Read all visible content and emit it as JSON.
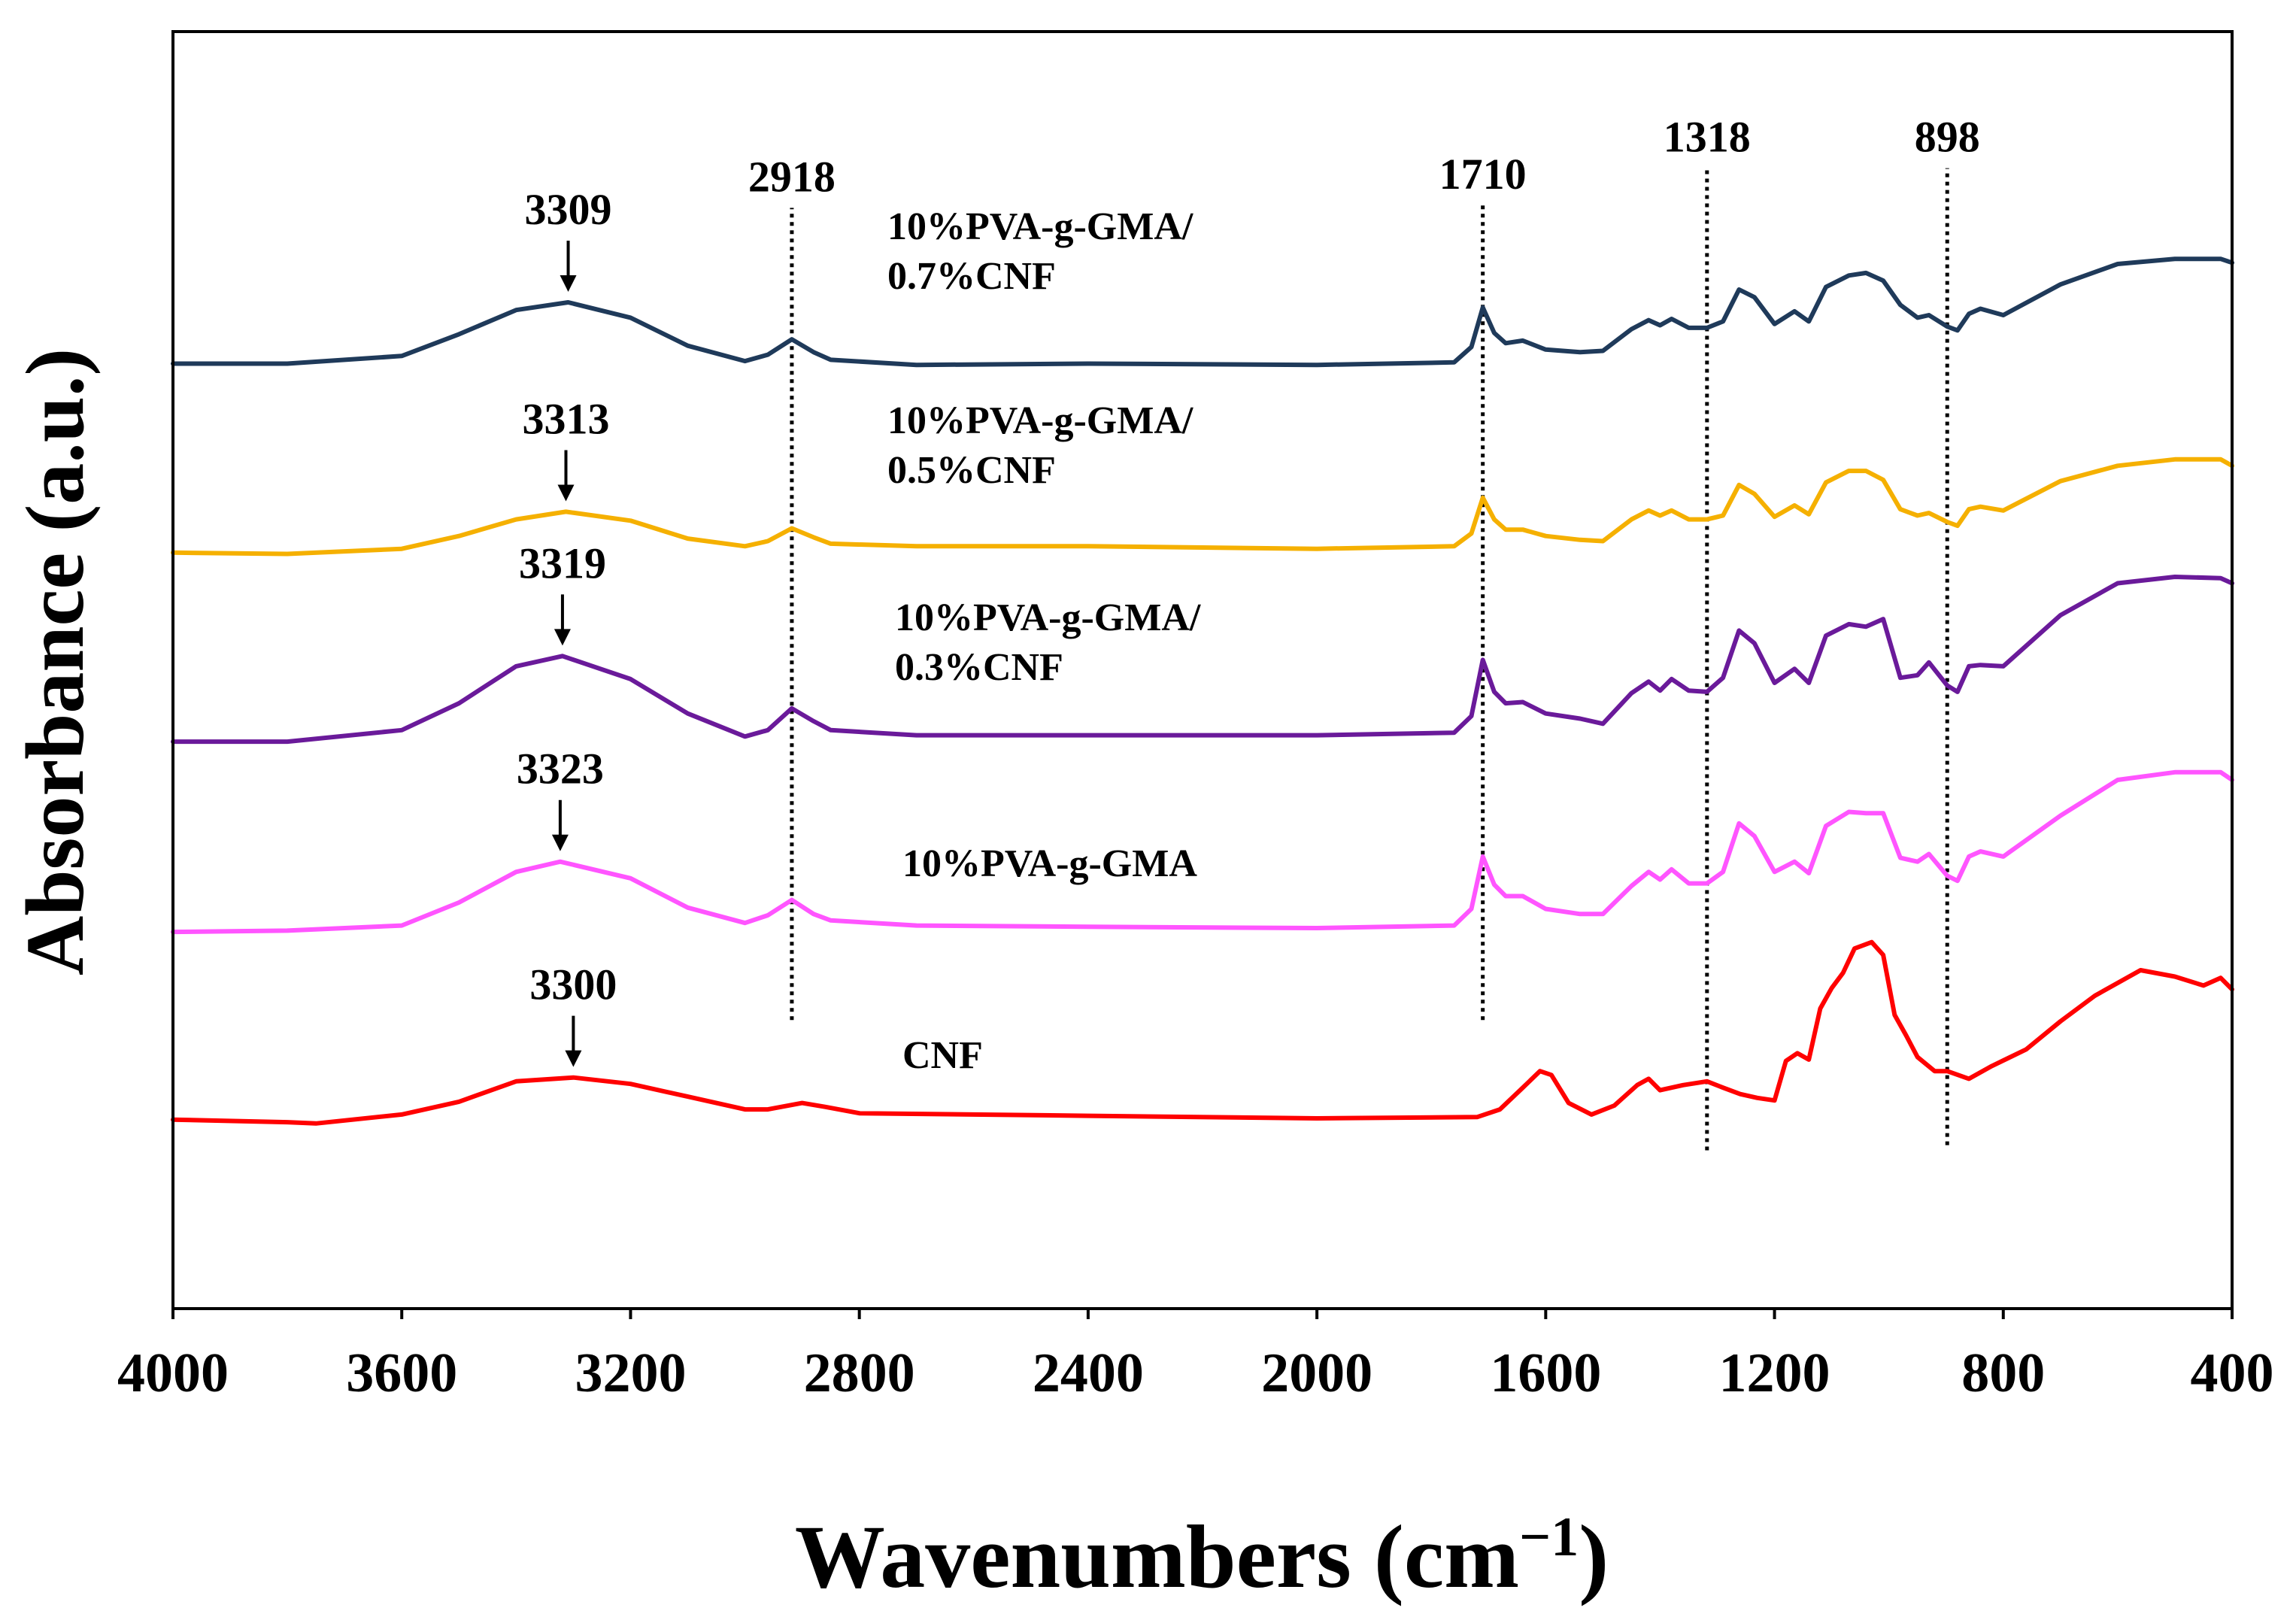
{
  "chart_data": {
    "type": "line",
    "title": "",
    "xlabel": "Wavenumbers (cm",
    "xlabel_sup": "−1",
    "xlabel_close": ")",
    "ylabel": "Absorbance (a.u.)",
    "xlim": [
      4000,
      400
    ],
    "ylim": [
      0,
      100
    ],
    "x_inverted": true,
    "grid": false,
    "y_ticks_shown": false,
    "x_ticks": [
      "4000",
      "3600",
      "3200",
      "2800",
      "2400",
      "2000",
      "1600",
      "1200",
      "800",
      "400"
    ],
    "colors": {
      "pva_07cnf": "#1f3a5a",
      "pva_05cnf": "#f5b000",
      "pva_03cnf": "#6a1a9a",
      "pva": "#ff55ff",
      "cnf": "#ff0000"
    },
    "series": [
      {
        "name": "10%PVA-g-GMA/0.7%CNF",
        "label_lines": [
          "10%PVA-g-GMA/",
          "0.7%CNF"
        ],
        "color": "#1f3a5a",
        "points": [
          [
            4000,
            74.0
          ],
          [
            3800,
            74.0
          ],
          [
            3600,
            74.6
          ],
          [
            3500,
            76.3
          ],
          [
            3400,
            78.2
          ],
          [
            3309,
            78.8
          ],
          [
            3200,
            77.6
          ],
          [
            3100,
            75.4
          ],
          [
            3000,
            74.2
          ],
          [
            2960,
            74.7
          ],
          [
            2918,
            75.9
          ],
          [
            2880,
            74.9
          ],
          [
            2850,
            74.3
          ],
          [
            2700,
            73.9
          ],
          [
            2400,
            74.0
          ],
          [
            2000,
            73.9
          ],
          [
            1760,
            74.1
          ],
          [
            1730,
            75.3
          ],
          [
            1710,
            78.4
          ],
          [
            1690,
            76.4
          ],
          [
            1670,
            75.6
          ],
          [
            1640,
            75.8
          ],
          [
            1600,
            75.1
          ],
          [
            1540,
            74.9
          ],
          [
            1500,
            75.0
          ],
          [
            1450,
            76.7
          ],
          [
            1420,
            77.4
          ],
          [
            1400,
            77.0
          ],
          [
            1380,
            77.5
          ],
          [
            1350,
            76.8
          ],
          [
            1318,
            76.8
          ],
          [
            1290,
            77.3
          ],
          [
            1262,
            79.8
          ],
          [
            1235,
            79.2
          ],
          [
            1200,
            77.1
          ],
          [
            1165,
            78.1
          ],
          [
            1140,
            77.3
          ],
          [
            1110,
            80.0
          ],
          [
            1070,
            80.9
          ],
          [
            1040,
            81.1
          ],
          [
            1010,
            80.5
          ],
          [
            980,
            78.6
          ],
          [
            950,
            77.6
          ],
          [
            930,
            77.8
          ],
          [
            898,
            76.9
          ],
          [
            880,
            76.6
          ],
          [
            860,
            77.9
          ],
          [
            840,
            78.3
          ],
          [
            800,
            77.8
          ],
          [
            700,
            80.2
          ],
          [
            600,
            81.8
          ],
          [
            500,
            82.2
          ],
          [
            420,
            82.2
          ],
          [
            400,
            81.9
          ]
        ]
      },
      {
        "name": "10%PVA-g-GMA/0.5%CNF",
        "label_lines": [
          "10%PVA-g-GMA/",
          "0.5%CNF"
        ],
        "color": "#f5b000",
        "points": [
          [
            4000,
            59.2
          ],
          [
            3800,
            59.1
          ],
          [
            3600,
            59.5
          ],
          [
            3500,
            60.5
          ],
          [
            3400,
            61.8
          ],
          [
            3313,
            62.4
          ],
          [
            3200,
            61.7
          ],
          [
            3100,
            60.3
          ],
          [
            3000,
            59.7
          ],
          [
            2960,
            60.1
          ],
          [
            2918,
            61.1
          ],
          [
            2880,
            60.4
          ],
          [
            2850,
            59.9
          ],
          [
            2700,
            59.7
          ],
          [
            2400,
            59.7
          ],
          [
            2000,
            59.5
          ],
          [
            1760,
            59.7
          ],
          [
            1730,
            60.7
          ],
          [
            1710,
            63.5
          ],
          [
            1690,
            61.8
          ],
          [
            1670,
            61.0
          ],
          [
            1640,
            61.0
          ],
          [
            1600,
            60.5
          ],
          [
            1540,
            60.2
          ],
          [
            1500,
            60.1
          ],
          [
            1450,
            61.8
          ],
          [
            1420,
            62.5
          ],
          [
            1400,
            62.1
          ],
          [
            1380,
            62.5
          ],
          [
            1350,
            61.8
          ],
          [
            1318,
            61.8
          ],
          [
            1290,
            62.1
          ],
          [
            1262,
            64.5
          ],
          [
            1235,
            63.8
          ],
          [
            1200,
            62.0
          ],
          [
            1165,
            62.9
          ],
          [
            1140,
            62.2
          ],
          [
            1110,
            64.7
          ],
          [
            1070,
            65.6
          ],
          [
            1040,
            65.6
          ],
          [
            1010,
            64.9
          ],
          [
            980,
            62.6
          ],
          [
            950,
            62.1
          ],
          [
            930,
            62.3
          ],
          [
            898,
            61.6
          ],
          [
            880,
            61.3
          ],
          [
            860,
            62.6
          ],
          [
            840,
            62.8
          ],
          [
            800,
            62.5
          ],
          [
            700,
            64.8
          ],
          [
            600,
            66.0
          ],
          [
            500,
            66.5
          ],
          [
            420,
            66.5
          ],
          [
            400,
            66.0
          ]
        ]
      },
      {
        "name": "10%PVA-g-GMA/0.3%CNF",
        "label_lines": [
          "10%PVA-g-GMA/",
          "0.3%CNF"
        ],
        "color": "#6a1a9a",
        "points": [
          [
            4000,
            44.4
          ],
          [
            3800,
            44.4
          ],
          [
            3600,
            45.3
          ],
          [
            3500,
            47.4
          ],
          [
            3400,
            50.3
          ],
          [
            3319,
            51.1
          ],
          [
            3200,
            49.3
          ],
          [
            3100,
            46.6
          ],
          [
            3000,
            44.8
          ],
          [
            2960,
            45.3
          ],
          [
            2918,
            47.0
          ],
          [
            2880,
            46.0
          ],
          [
            2850,
            45.3
          ],
          [
            2700,
            44.9
          ],
          [
            2400,
            44.9
          ],
          [
            2000,
            44.9
          ],
          [
            1760,
            45.1
          ],
          [
            1730,
            46.4
          ],
          [
            1710,
            50.8
          ],
          [
            1690,
            48.3
          ],
          [
            1670,
            47.4
          ],
          [
            1640,
            47.5
          ],
          [
            1600,
            46.6
          ],
          [
            1540,
            46.2
          ],
          [
            1500,
            45.8
          ],
          [
            1450,
            48.2
          ],
          [
            1420,
            49.1
          ],
          [
            1400,
            48.4
          ],
          [
            1380,
            49.3
          ],
          [
            1350,
            48.4
          ],
          [
            1318,
            48.3
          ],
          [
            1290,
            49.4
          ],
          [
            1262,
            53.1
          ],
          [
            1235,
            52.1
          ],
          [
            1200,
            49.0
          ],
          [
            1165,
            50.1
          ],
          [
            1140,
            49.0
          ],
          [
            1110,
            52.7
          ],
          [
            1070,
            53.6
          ],
          [
            1040,
            53.4
          ],
          [
            1010,
            54.0
          ],
          [
            980,
            49.4
          ],
          [
            950,
            49.6
          ],
          [
            930,
            50.6
          ],
          [
            898,
            48.8
          ],
          [
            880,
            48.3
          ],
          [
            860,
            50.3
          ],
          [
            840,
            50.4
          ],
          [
            800,
            50.3
          ],
          [
            700,
            54.3
          ],
          [
            600,
            56.8
          ],
          [
            500,
            57.3
          ],
          [
            420,
            57.2
          ],
          [
            400,
            56.8
          ]
        ]
      },
      {
        "name": "10%PVA-g-GMA",
        "label_lines": [
          "10%PVA-g-GMA"
        ],
        "color": "#ff55ff",
        "points": [
          [
            4000,
            29.5
          ],
          [
            3800,
            29.6
          ],
          [
            3600,
            30.0
          ],
          [
            3500,
            31.8
          ],
          [
            3400,
            34.2
          ],
          [
            3323,
            35.0
          ],
          [
            3200,
            33.7
          ],
          [
            3100,
            31.4
          ],
          [
            3000,
            30.2
          ],
          [
            2960,
            30.8
          ],
          [
            2918,
            32.0
          ],
          [
            2880,
            30.9
          ],
          [
            2850,
            30.4
          ],
          [
            2700,
            30.0
          ],
          [
            2400,
            29.9
          ],
          [
            2000,
            29.8
          ],
          [
            1760,
            30.0
          ],
          [
            1730,
            31.3
          ],
          [
            1710,
            35.4
          ],
          [
            1690,
            33.2
          ],
          [
            1670,
            32.3
          ],
          [
            1640,
            32.3
          ],
          [
            1600,
            31.3
          ],
          [
            1540,
            30.9
          ],
          [
            1500,
            30.9
          ],
          [
            1450,
            33.1
          ],
          [
            1420,
            34.2
          ],
          [
            1400,
            33.6
          ],
          [
            1380,
            34.4
          ],
          [
            1350,
            33.3
          ],
          [
            1318,
            33.3
          ],
          [
            1290,
            34.2
          ],
          [
            1262,
            38.0
          ],
          [
            1235,
            37.0
          ],
          [
            1200,
            34.2
          ],
          [
            1165,
            35.0
          ],
          [
            1140,
            34.1
          ],
          [
            1110,
            37.8
          ],
          [
            1070,
            38.9
          ],
          [
            1040,
            38.8
          ],
          [
            1010,
            38.8
          ],
          [
            980,
            35.3
          ],
          [
            950,
            35.0
          ],
          [
            930,
            35.6
          ],
          [
            898,
            33.9
          ],
          [
            880,
            33.5
          ],
          [
            860,
            35.4
          ],
          [
            840,
            35.8
          ],
          [
            800,
            35.4
          ],
          [
            700,
            38.6
          ],
          [
            600,
            41.4
          ],
          [
            500,
            42.0
          ],
          [
            420,
            42.0
          ],
          [
            400,
            41.4
          ]
        ]
      },
      {
        "name": "CNF",
        "label_lines": [
          "CNF"
        ],
        "color": "#ff0000",
        "points": [
          [
            4000,
            14.8
          ],
          [
            3800,
            14.6
          ],
          [
            3750,
            14.5
          ],
          [
            3600,
            15.2
          ],
          [
            3500,
            16.2
          ],
          [
            3400,
            17.8
          ],
          [
            3300,
            18.1
          ],
          [
            3200,
            17.6
          ],
          [
            3100,
            16.6
          ],
          [
            3000,
            15.6
          ],
          [
            2960,
            15.6
          ],
          [
            2900,
            16.1
          ],
          [
            2860,
            15.8
          ],
          [
            2800,
            15.3
          ],
          [
            2400,
            15.1
          ],
          [
            2000,
            14.9
          ],
          [
            1720,
            15.0
          ],
          [
            1680,
            15.6
          ],
          [
            1640,
            17.3
          ],
          [
            1610,
            18.6
          ],
          [
            1590,
            18.3
          ],
          [
            1560,
            16.1
          ],
          [
            1520,
            15.2
          ],
          [
            1480,
            15.9
          ],
          [
            1440,
            17.5
          ],
          [
            1420,
            18.0
          ],
          [
            1400,
            17.1
          ],
          [
            1360,
            17.5
          ],
          [
            1318,
            17.8
          ],
          [
            1290,
            17.3
          ],
          [
            1260,
            16.8
          ],
          [
            1230,
            16.5
          ],
          [
            1200,
            16.3
          ],
          [
            1180,
            19.4
          ],
          [
            1160,
            20.0
          ],
          [
            1140,
            19.5
          ],
          [
            1120,
            23.5
          ],
          [
            1100,
            25.1
          ],
          [
            1080,
            26.3
          ],
          [
            1060,
            28.2
          ],
          [
            1030,
            28.7
          ],
          [
            1010,
            27.7
          ],
          [
            990,
            23.0
          ],
          [
            970,
            21.4
          ],
          [
            950,
            19.7
          ],
          [
            920,
            18.6
          ],
          [
            898,
            18.6
          ],
          [
            860,
            18.0
          ],
          [
            820,
            19.0
          ],
          [
            760,
            20.3
          ],
          [
            700,
            22.5
          ],
          [
            640,
            24.5
          ],
          [
            560,
            26.5
          ],
          [
            500,
            26.0
          ],
          [
            450,
            25.3
          ],
          [
            420,
            25.9
          ],
          [
            400,
            25.0
          ]
        ]
      }
    ],
    "peak_annotations": [
      {
        "label": "3309",
        "x": 3309,
        "y": 78.8,
        "arrow": true
      },
      {
        "label": "3313",
        "x": 3313,
        "y": 62.4,
        "arrow": true
      },
      {
        "label": "3319",
        "x": 3319,
        "y": 51.1,
        "arrow": true
      },
      {
        "label": "3323",
        "x": 3323,
        "y": 35.0,
        "arrow": true
      },
      {
        "label": "3300",
        "x": 3300,
        "y": 18.1,
        "arrow": true
      }
    ],
    "reference_lines": [
      {
        "label": "2918",
        "x": 2918,
        "y_from": 22.6,
        "y_to": 86.2
      },
      {
        "label": "1710",
        "x": 1710,
        "y_from": 22.6,
        "y_to": 86.4
      },
      {
        "label": "1318",
        "x": 1318,
        "y_from": 12.4,
        "y_to": 89.3
      },
      {
        "label": "898",
        "x": 898,
        "y_from": 12.8,
        "y_to": 89.3
      }
    ]
  }
}
